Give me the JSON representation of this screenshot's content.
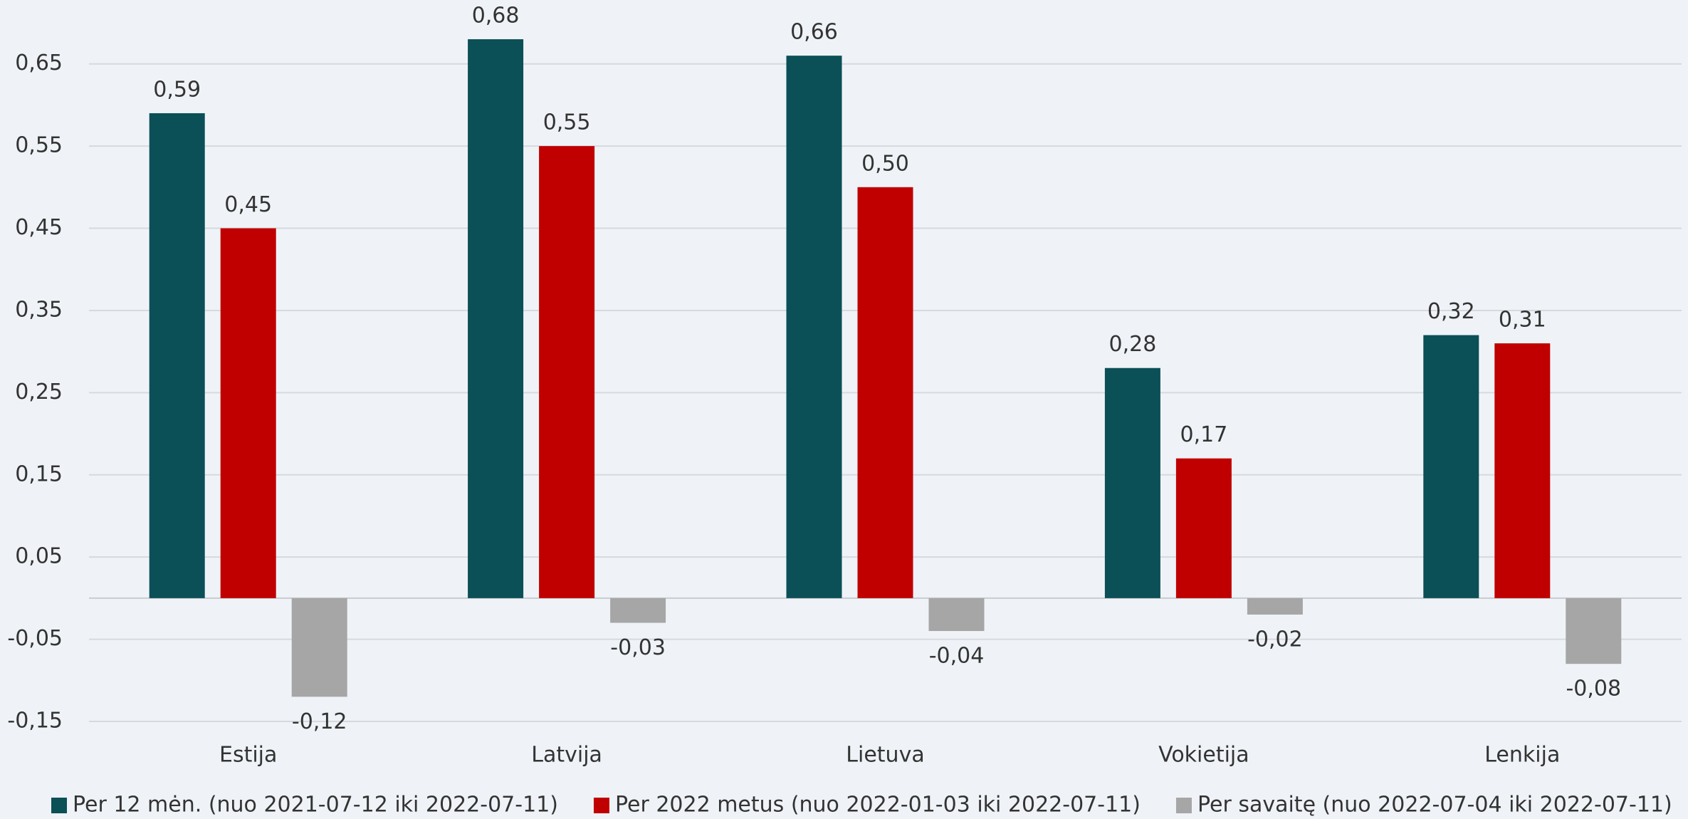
{
  "chart_data": {
    "type": "bar",
    "categories": [
      "Estija",
      "Latvija",
      "Lietuva",
      "Vokietija",
      "Lenkija"
    ],
    "series": [
      {
        "name": "Per 12 mėn. (nuo 2021-07-12 iki 2022-07-11)",
        "color": "#0b4f57",
        "values": [
          0.59,
          0.68,
          0.66,
          0.28,
          0.32
        ],
        "value_labels": [
          "0,59",
          "0,68",
          "0,66",
          "0,28",
          "0,32"
        ]
      },
      {
        "name": "Per 2022 metus (nuo 2022-01-03 iki 2022-07-11)",
        "color": "#c00000",
        "values": [
          0.45,
          0.55,
          0.5,
          0.17,
          0.31
        ],
        "value_labels": [
          "0,45",
          "0,55",
          "0,50",
          "0,17",
          "0,31"
        ]
      },
      {
        "name": "Per savaitę (nuo 2022-07-04 iki 2022-07-11)",
        "color": "#a6a6a6",
        "values": [
          -0.12,
          -0.03,
          -0.04,
          -0.02,
          -0.08
        ],
        "value_labels": [
          "-0,12",
          "-0,03",
          "-0,04",
          "-0,02",
          "-0,08"
        ]
      }
    ],
    "ylim": [
      -0.15,
      0.7
    ],
    "yticks": [
      {
        "value": -0.15,
        "label": "-0,15"
      },
      {
        "value": -0.05,
        "label": "-0,05"
      },
      {
        "value": 0.05,
        "label": "0,05"
      },
      {
        "value": 0.15,
        "label": "0,15"
      },
      {
        "value": 0.25,
        "label": "0,25"
      },
      {
        "value": 0.35,
        "label": "0,35"
      },
      {
        "value": 0.45,
        "label": "0,45"
      },
      {
        "value": 0.55,
        "label": "0,55"
      },
      {
        "value": 0.65,
        "label": "0,65"
      }
    ],
    "grid": true,
    "legend": "bottom"
  }
}
